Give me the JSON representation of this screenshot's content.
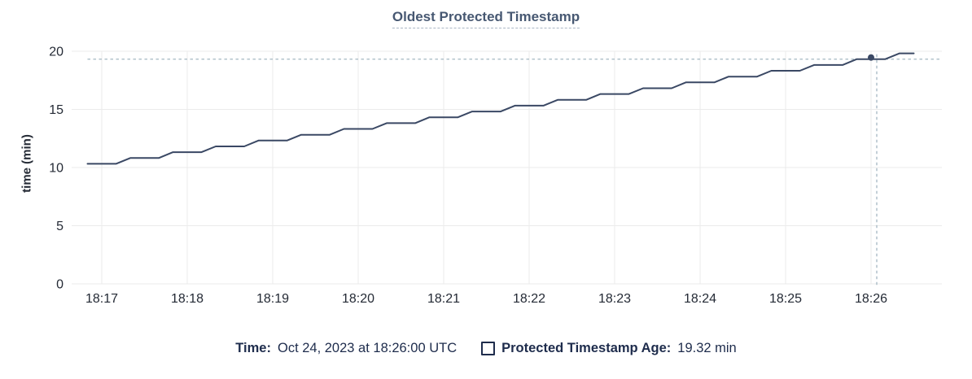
{
  "title": "Oldest Protected Timestamp",
  "y_axis_title": "time (min)",
  "legend": {
    "time_label": "Time:",
    "time_value": "Oct 24, 2023 at 18:26:00 UTC",
    "series_label": "Protected Timestamp Age:",
    "series_value": "19.32 min"
  },
  "colors": {
    "line": "#3a4864",
    "dot": "#3a4864",
    "grid": "#ebebeb",
    "crosshair": "#a4b7c2",
    "axis_text": "#242a35",
    "title_text": "#475872",
    "legend_text": "#1e2c4c",
    "background": "#ffffff"
  },
  "chart_data": {
    "type": "line",
    "title": "Oldest Protected Timestamp",
    "xlabel": "",
    "ylabel": "time (min)",
    "ylim": [
      0,
      20
    ],
    "yticks": [
      0,
      5,
      10,
      15,
      20
    ],
    "xticks": [
      "18:17",
      "18:18",
      "18:19",
      "18:20",
      "18:21",
      "18:22",
      "18:23",
      "18:24",
      "18:25",
      "18:26"
    ],
    "grid": true,
    "legend_position": "bottom",
    "series": [
      {
        "name": "Protected Timestamp Age",
        "unit": "min",
        "points": [
          [
            "18:16:50",
            10.32
          ],
          [
            "18:17:00",
            10.32
          ],
          [
            "18:17:10",
            10.32
          ],
          [
            "18:17:20",
            10.82
          ],
          [
            "18:17:30",
            10.82
          ],
          [
            "18:17:40",
            10.82
          ],
          [
            "18:17:50",
            11.32
          ],
          [
            "18:18:00",
            11.32
          ],
          [
            "18:18:10",
            11.32
          ],
          [
            "18:18:20",
            11.82
          ],
          [
            "18:18:30",
            11.82
          ],
          [
            "18:18:40",
            11.82
          ],
          [
            "18:18:50",
            12.32
          ],
          [
            "18:19:00",
            12.32
          ],
          [
            "18:19:10",
            12.32
          ],
          [
            "18:19:20",
            12.82
          ],
          [
            "18:19:30",
            12.82
          ],
          [
            "18:19:40",
            12.82
          ],
          [
            "18:19:50",
            13.32
          ],
          [
            "18:20:00",
            13.32
          ],
          [
            "18:20:10",
            13.32
          ],
          [
            "18:20:20",
            13.82
          ],
          [
            "18:20:30",
            13.82
          ],
          [
            "18:20:40",
            13.82
          ],
          [
            "18:20:50",
            14.32
          ],
          [
            "18:21:00",
            14.32
          ],
          [
            "18:21:10",
            14.32
          ],
          [
            "18:21:20",
            14.82
          ],
          [
            "18:21:30",
            14.82
          ],
          [
            "18:21:40",
            14.82
          ],
          [
            "18:21:50",
            15.32
          ],
          [
            "18:22:00",
            15.32
          ],
          [
            "18:22:10",
            15.32
          ],
          [
            "18:22:20",
            15.82
          ],
          [
            "18:22:30",
            15.82
          ],
          [
            "18:22:40",
            15.82
          ],
          [
            "18:22:50",
            16.32
          ],
          [
            "18:23:00",
            16.32
          ],
          [
            "18:23:10",
            16.32
          ],
          [
            "18:23:20",
            16.82
          ],
          [
            "18:23:30",
            16.82
          ],
          [
            "18:23:40",
            16.82
          ],
          [
            "18:23:50",
            17.32
          ],
          [
            "18:24:00",
            17.32
          ],
          [
            "18:24:10",
            17.32
          ],
          [
            "18:24:20",
            17.82
          ],
          [
            "18:24:30",
            17.82
          ],
          [
            "18:24:40",
            17.82
          ],
          [
            "18:24:50",
            18.32
          ],
          [
            "18:25:00",
            18.32
          ],
          [
            "18:25:10",
            18.32
          ],
          [
            "18:25:20",
            18.82
          ],
          [
            "18:25:30",
            18.82
          ],
          [
            "18:25:40",
            18.82
          ],
          [
            "18:25:50",
            19.32
          ],
          [
            "18:26:00",
            19.32
          ],
          [
            "18:26:10",
            19.32
          ],
          [
            "18:26:20",
            19.82
          ],
          [
            "18:26:30",
            19.82
          ]
        ]
      }
    ],
    "hover": {
      "x": "18:26:00",
      "value": 19.32
    }
  }
}
